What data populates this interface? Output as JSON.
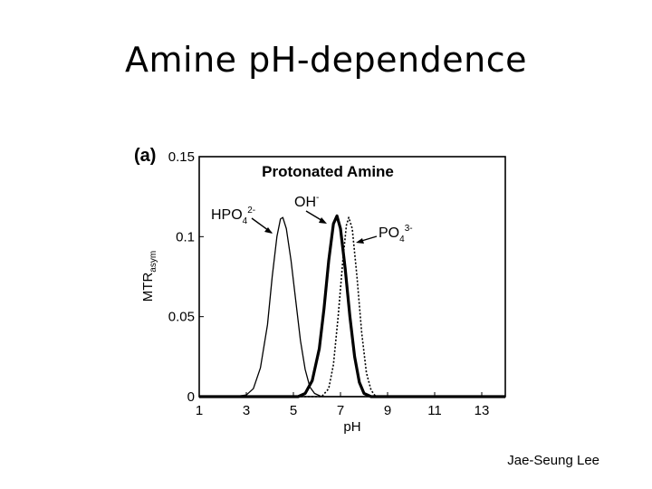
{
  "slide": {
    "title": "Amine pH-dependence",
    "credit": "Jae-Seung Lee"
  },
  "chart_data": {
    "type": "line",
    "panel_label": "(a)",
    "title": "Protonated Amine",
    "xlabel": "pH",
    "ylabel": "MTR",
    "ylabel_sub": "asym",
    "xlim": [
      1,
      14
    ],
    "ylim": [
      0,
      0.15
    ],
    "x_ticks": [
      1,
      3,
      5,
      7,
      9,
      11,
      13
    ],
    "y_ticks": [
      0,
      0.05,
      0.1,
      0.15
    ],
    "y_tick_labels": [
      "0",
      "0.05",
      "0.1",
      "0.15"
    ],
    "grid": false,
    "series": [
      {
        "name": "HPO4 2-",
        "style": "solid-thin",
        "color": "#000000",
        "points": [
          [
            1,
            0
          ],
          [
            2.5,
            0
          ],
          [
            3.0,
            0.001
          ],
          [
            3.3,
            0.005
          ],
          [
            3.6,
            0.018
          ],
          [
            3.9,
            0.045
          ],
          [
            4.1,
            0.075
          ],
          [
            4.3,
            0.1
          ],
          [
            4.45,
            0.111
          ],
          [
            4.55,
            0.112
          ],
          [
            4.7,
            0.105
          ],
          [
            4.9,
            0.085
          ],
          [
            5.1,
            0.06
          ],
          [
            5.3,
            0.035
          ],
          [
            5.5,
            0.017
          ],
          [
            5.7,
            0.006
          ],
          [
            5.9,
            0.002
          ],
          [
            6.2,
            0
          ],
          [
            14,
            0
          ]
        ]
      },
      {
        "name": "OH-",
        "style": "solid-thick",
        "color": "#000000",
        "points": [
          [
            1,
            0
          ],
          [
            5.2,
            0
          ],
          [
            5.5,
            0.002
          ],
          [
            5.8,
            0.01
          ],
          [
            6.1,
            0.03
          ],
          [
            6.3,
            0.055
          ],
          [
            6.5,
            0.085
          ],
          [
            6.7,
            0.108
          ],
          [
            6.85,
            0.113
          ],
          [
            7.0,
            0.105
          ],
          [
            7.2,
            0.08
          ],
          [
            7.4,
            0.05
          ],
          [
            7.6,
            0.025
          ],
          [
            7.8,
            0.009
          ],
          [
            8.0,
            0.002
          ],
          [
            8.3,
            0
          ],
          [
            14,
            0
          ]
        ]
      },
      {
        "name": "PO4 3-",
        "style": "dotted",
        "color": "#000000",
        "points": [
          [
            1,
            0
          ],
          [
            6.2,
            0
          ],
          [
            6.5,
            0.005
          ],
          [
            6.7,
            0.02
          ],
          [
            6.9,
            0.05
          ],
          [
            7.1,
            0.085
          ],
          [
            7.25,
            0.107
          ],
          [
            7.35,
            0.112
          ],
          [
            7.5,
            0.105
          ],
          [
            7.7,
            0.075
          ],
          [
            7.9,
            0.04
          ],
          [
            8.1,
            0.015
          ],
          [
            8.3,
            0.004
          ],
          [
            8.5,
            0
          ],
          [
            14,
            0
          ]
        ]
      }
    ],
    "annotations": [
      {
        "base": "HPO",
        "sub": "4",
        "sup": "2-"
      },
      {
        "base": "OH",
        "sup": "-"
      },
      {
        "base": "PO",
        "sub": "4",
        "sup": "3-"
      }
    ]
  }
}
